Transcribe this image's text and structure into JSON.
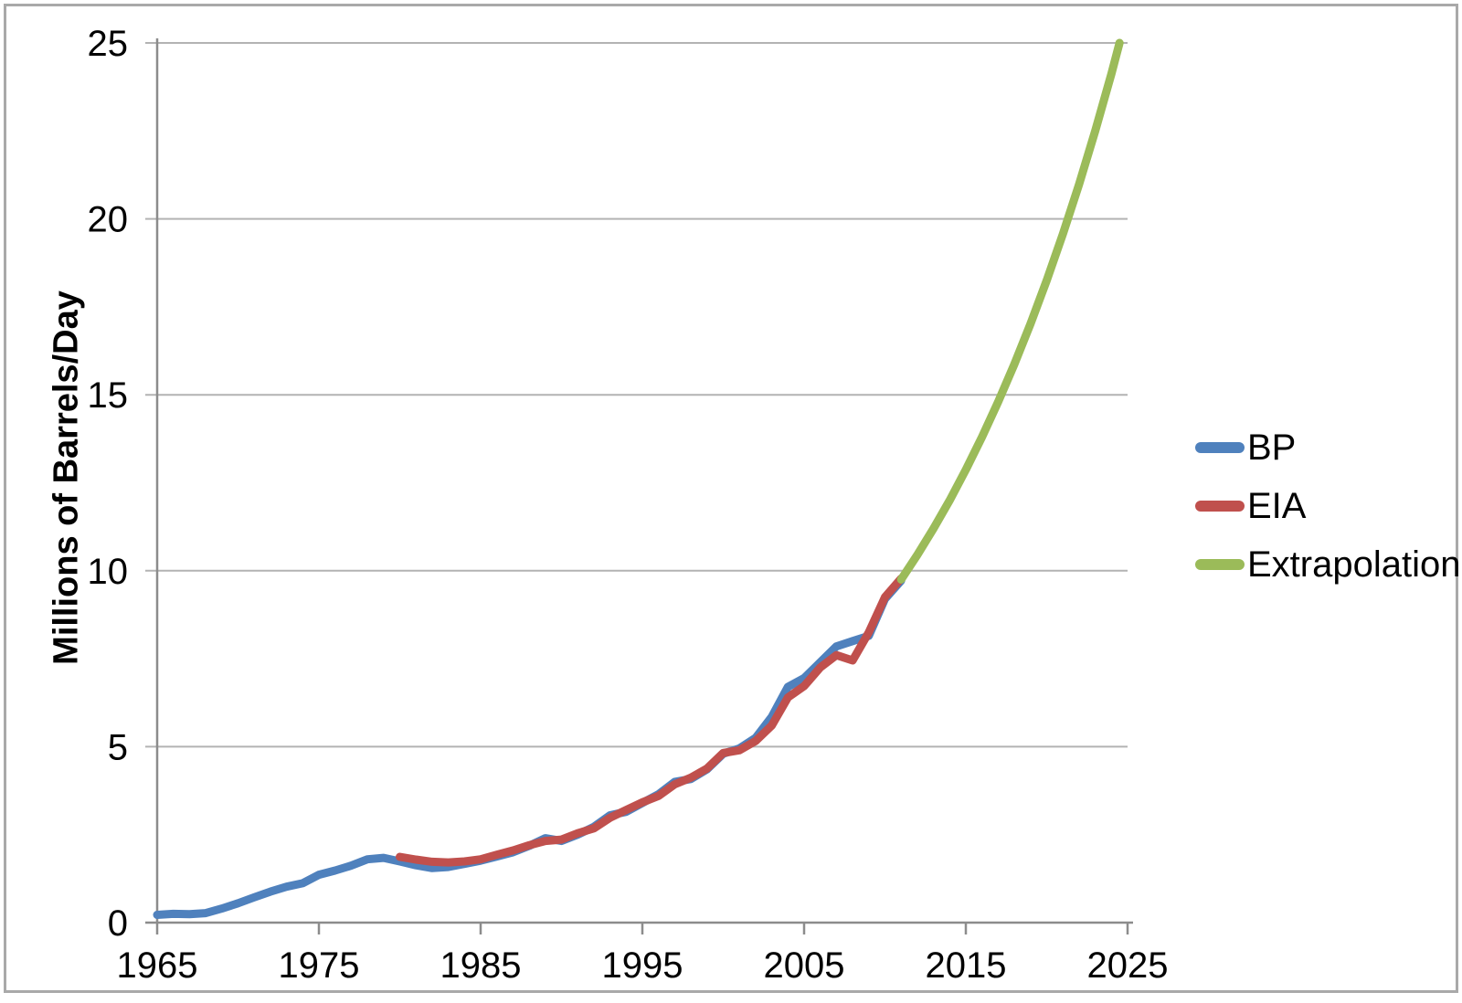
{
  "chart_data": {
    "type": "line",
    "title": "",
    "xlabel": "",
    "ylabel": "Millions of Barrels/Day",
    "xlim": [
      1965,
      2025
    ],
    "ylim": [
      0,
      25
    ],
    "x_ticks": [
      1965,
      1975,
      1985,
      1995,
      2005,
      2015,
      2025
    ],
    "y_ticks": [
      0,
      5,
      10,
      15,
      20,
      25
    ],
    "grid": "horizontal",
    "legend_position": "right",
    "colors": {
      "gridline": "#b3b3b3",
      "axis": "#8c8c8c",
      "text": "#000000",
      "background": "#ffffff",
      "frame_border": "#a9a9a9"
    },
    "series": [
      {
        "name": "BP",
        "color": "#4F81BD",
        "points": [
          [
            1965,
            0.22
          ],
          [
            1966,
            0.25
          ],
          [
            1967,
            0.24
          ],
          [
            1968,
            0.27
          ],
          [
            1969,
            0.4
          ],
          [
            1970,
            0.55
          ],
          [
            1971,
            0.72
          ],
          [
            1972,
            0.88
          ],
          [
            1973,
            1.02
          ],
          [
            1974,
            1.12
          ],
          [
            1975,
            1.36
          ],
          [
            1976,
            1.48
          ],
          [
            1977,
            1.62
          ],
          [
            1978,
            1.8
          ],
          [
            1979,
            1.84
          ],
          [
            1980,
            1.74
          ],
          [
            1981,
            1.63
          ],
          [
            1982,
            1.55
          ],
          [
            1983,
            1.58
          ],
          [
            1984,
            1.67
          ],
          [
            1985,
            1.76
          ],
          [
            1986,
            1.88
          ],
          [
            1987,
            2.0
          ],
          [
            1988,
            2.18
          ],
          [
            1989,
            2.4
          ],
          [
            1990,
            2.32
          ],
          [
            1991,
            2.5
          ],
          [
            1992,
            2.72
          ],
          [
            1993,
            3.05
          ],
          [
            1994,
            3.15
          ],
          [
            1995,
            3.4
          ],
          [
            1996,
            3.65
          ],
          [
            1997,
            4.0
          ],
          [
            1998,
            4.08
          ],
          [
            1999,
            4.36
          ],
          [
            2000,
            4.8
          ],
          [
            2001,
            4.95
          ],
          [
            2002,
            5.25
          ],
          [
            2003,
            5.85
          ],
          [
            2004,
            6.7
          ],
          [
            2005,
            6.95
          ],
          [
            2006,
            7.4
          ],
          [
            2007,
            7.85
          ],
          [
            2008,
            8.0
          ],
          [
            2009,
            8.15
          ],
          [
            2010,
            9.2
          ],
          [
            2011,
            9.72
          ]
        ]
      },
      {
        "name": "EIA",
        "color": "#C0504D",
        "points": [
          [
            1980,
            1.87
          ],
          [
            1981,
            1.79
          ],
          [
            1982,
            1.73
          ],
          [
            1983,
            1.71
          ],
          [
            1984,
            1.74
          ],
          [
            1985,
            1.8
          ],
          [
            1986,
            1.93
          ],
          [
            1987,
            2.05
          ],
          [
            1988,
            2.2
          ],
          [
            1989,
            2.32
          ],
          [
            1990,
            2.36
          ],
          [
            1991,
            2.54
          ],
          [
            1992,
            2.68
          ],
          [
            1993,
            2.98
          ],
          [
            1994,
            3.2
          ],
          [
            1995,
            3.42
          ],
          [
            1996,
            3.6
          ],
          [
            1997,
            3.93
          ],
          [
            1998,
            4.12
          ],
          [
            1999,
            4.38
          ],
          [
            2000,
            4.82
          ],
          [
            2001,
            4.9
          ],
          [
            2002,
            5.16
          ],
          [
            2003,
            5.6
          ],
          [
            2004,
            6.4
          ],
          [
            2005,
            6.72
          ],
          [
            2006,
            7.25
          ],
          [
            2007,
            7.6
          ],
          [
            2008,
            7.45
          ],
          [
            2009,
            8.25
          ],
          [
            2010,
            9.25
          ],
          [
            2011,
            9.78
          ]
        ]
      },
      {
        "name": "Extrapolation",
        "color": "#9BBB59",
        "points": [
          [
            2011,
            9.75
          ],
          [
            2012,
            10.45
          ],
          [
            2013,
            11.2
          ],
          [
            2014,
            12.0
          ],
          [
            2015,
            12.87
          ],
          [
            2016,
            13.8
          ],
          [
            2017,
            14.8
          ],
          [
            2018,
            15.87
          ],
          [
            2019,
            17.02
          ],
          [
            2020,
            18.25
          ],
          [
            2021,
            19.57
          ],
          [
            2022,
            20.98
          ],
          [
            2023,
            22.5
          ],
          [
            2024,
            24.12
          ],
          [
            2024.5,
            25.0
          ]
        ]
      }
    ]
  },
  "legend": {
    "items": [
      {
        "label": "BP",
        "color": "#4F81BD"
      },
      {
        "label": "EIA",
        "color": "#C0504D"
      },
      {
        "label": "Extrapolation",
        "color": "#9BBB59"
      }
    ]
  }
}
